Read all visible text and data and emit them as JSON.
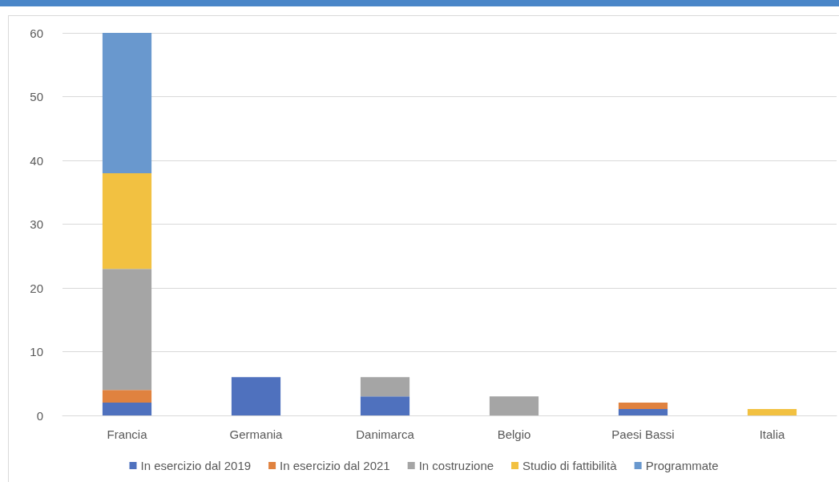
{
  "chart_data": {
    "type": "bar",
    "stacked": true,
    "categories": [
      "Francia",
      "Germania",
      "Danimarca",
      "Belgio",
      "Paesi Bassi",
      "Italia"
    ],
    "series": [
      {
        "name": "In esercizio dal 2019",
        "color": "#4f71be",
        "values": [
          2,
          6,
          3,
          0,
          1,
          0
        ]
      },
      {
        "name": "In esercizio dal 2021",
        "color": "#e0823f",
        "values": [
          2,
          0,
          0,
          0,
          1,
          0
        ]
      },
      {
        "name": "In costruzione",
        "color": "#a5a5a5",
        "values": [
          19,
          0,
          3,
          3,
          0,
          0
        ]
      },
      {
        "name": "Studio di fattibilità",
        "color": "#f2c141",
        "values": [
          15,
          0,
          0,
          0,
          0,
          1
        ]
      },
      {
        "name": "Programmate",
        "color": "#6998ce",
        "values": [
          22,
          0,
          0,
          0,
          0,
          0
        ]
      }
    ],
    "ylim": [
      0,
      60
    ],
    "yticks": [
      0,
      10,
      20,
      30,
      40,
      50,
      60
    ],
    "grid": "y",
    "legend": "bottom"
  }
}
